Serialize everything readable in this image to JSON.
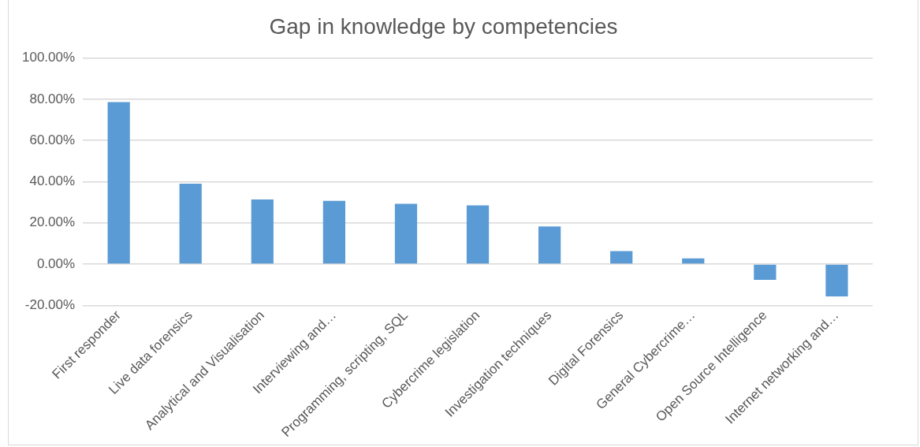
{
  "chart_data": {
    "type": "bar",
    "title": "Gap in knowledge by competencies",
    "categories": [
      "First responder",
      "Live data forensics",
      "Analytical and Visualisation",
      "Interviewing and…",
      "Programming, scripting, SQL",
      "Cybercrime legislation",
      "Investigation techniques",
      "Digital Forensics",
      "General Cybercrime…",
      "Open Source Intelligence",
      "Internet networking and…"
    ],
    "values": [
      78.6,
      39.0,
      31.4,
      30.7,
      29.3,
      28.5,
      18.3,
      6.3,
      2.8,
      -7.7,
      -15.7
    ],
    "color": "#5b9bd5",
    "ylim": [
      -20,
      100
    ],
    "yticks": [
      {
        "value": -20,
        "label": "-20.00%"
      },
      {
        "value": 0,
        "label": "0.00%"
      },
      {
        "value": 20,
        "label": "20.00%"
      },
      {
        "value": 40,
        "label": "40.00%"
      },
      {
        "value": 60,
        "label": "60.00%"
      },
      {
        "value": 80,
        "label": "80.00%"
      },
      {
        "value": 100,
        "label": "100.00%"
      }
    ],
    "grid": "y",
    "legend": false
  }
}
